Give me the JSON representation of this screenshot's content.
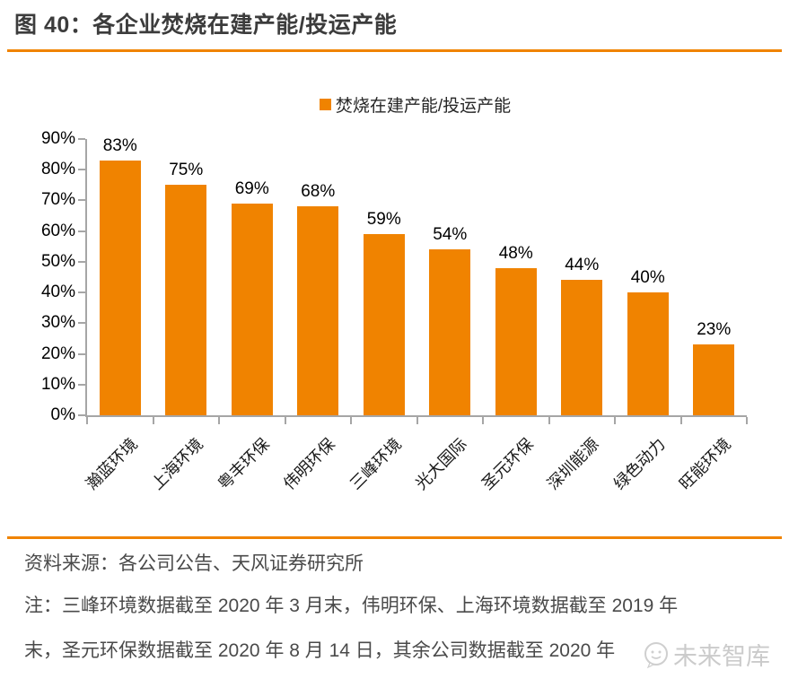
{
  "figure": {
    "title": "图 40：各企业焚烧在建产能/投运产能",
    "source": "资料来源：各公司公告、天风证券研究所",
    "note_lines": [
      "注：三峰环境数据截至 2020 年 3 月末，伟明环保、上海环境数据截至 2019 年",
      "末，圣元环保数据截至 2020 年 8 月 14 日，其余公司数据截至 2020 年"
    ],
    "watermark": "未来智库"
  },
  "colors": {
    "bar": "#F08300",
    "rule": "#F08300",
    "axis": "#A6A6A6",
    "watermark_text": "#CBCBCB"
  },
  "chart_data": {
    "type": "bar",
    "title": "焚烧在建产能/投运产能",
    "legend": [
      "焚烧在建产能/投运产能"
    ],
    "legend_position": "top",
    "categories": [
      "瀚蓝环境",
      "上海环境",
      "粤丰环保",
      "伟明环保",
      "三峰环境",
      "光大国际",
      "圣元环保",
      "深圳能源",
      "绿色动力",
      "旺能环境"
    ],
    "values": [
      83,
      75,
      69,
      68,
      59,
      54,
      48,
      44,
      40,
      23
    ],
    "unit": "%",
    "xlabel": "",
    "ylabel": "",
    "ylim": [
      0,
      90
    ],
    "ytick_step": 10,
    "grid": false,
    "data_labels": true
  }
}
